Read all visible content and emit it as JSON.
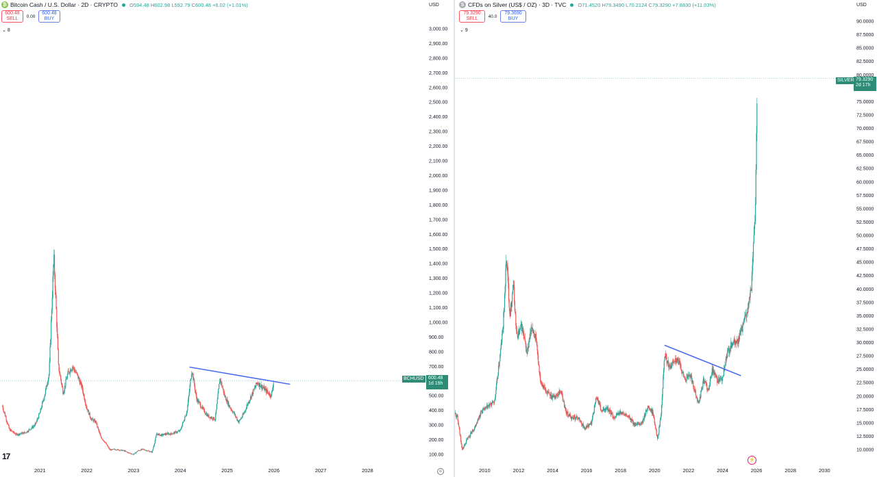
{
  "left": {
    "symbol_icon": "bitcoin-cash-icon",
    "title": "Bitcoin Cash / U.S. Dollar · 2D · CRYPTO",
    "ohlc": [
      {
        "k": "O",
        "v": "594.48"
      },
      {
        "k": "H",
        "v": "602.98"
      },
      {
        "k": "L",
        "v": "592.79"
      },
      {
        "k": "C",
        "v": "600.48"
      },
      {
        "k": "",
        "v": "+6.02 (+1.01%)"
      }
    ],
    "sell_price": "600.48",
    "sell_label": "SELL",
    "spread": "0.00",
    "buy_price": "600.48",
    "buy_label": "BUY",
    "indicators_count": "8",
    "currency": "USD",
    "symbol_tag": "BCHUSD",
    "last_price": "600.48",
    "countdown": "1d 19h"
  },
  "right": {
    "symbol_icon": "silver-icon",
    "title": "CFDs on Silver (US$ / OZ) · 3D · TVC",
    "ohlc": [
      {
        "k": "O",
        "v": "71.4520"
      },
      {
        "k": "H",
        "v": "79.3490"
      },
      {
        "k": "L",
        "v": "70.2124"
      },
      {
        "k": "C",
        "v": "79.3290"
      },
      {
        "k": "",
        "v": "+7.8830 (+11.03%)"
      }
    ],
    "sell_price": "79.3290",
    "sell_label": "SELL",
    "spread": "40.0",
    "buy_price": "79.3690",
    "buy_label": "BUY",
    "indicators_count": "9",
    "currency": "USD",
    "symbol_tag": "SILVER",
    "last_price": "79.3290",
    "countdown": "2d 17h"
  },
  "colors": {
    "up": "#26a69a",
    "down": "#ef5350",
    "trendline": "#4a6cf0",
    "price_tag": "#2e8b76",
    "price_line": "#7fc8b8"
  },
  "chart_data": [
    {
      "type": "candlestick",
      "title": "Bitcoin Cash / U.S. Dollar · 2D · CRYPTO",
      "ylabel": "USD",
      "ylim": [
        50,
        3050
      ],
      "y_ticks": [
        "100.00",
        "200.00",
        "300.00",
        "400.00",
        "500.00",
        "600.00",
        "700.00",
        "800.00",
        "900.00",
        "1,000.00",
        "1,100.00",
        "1,200.00",
        "1,300.00",
        "1,400.00",
        "1,500.00",
        "1,600.00",
        "1,700.00",
        "1,800.00",
        "1,900.00",
        "2,000.00",
        "2,100.00",
        "2,200.00",
        "2,300.00",
        "2,400.00",
        "2,500.00",
        "2,600.00",
        "2,700.00",
        "2,800.00",
        "2,900.00",
        "3,000.00"
      ],
      "x_ticks": [
        "2021",
        "2022",
        "2023",
        "2024",
        "2025",
        "2026",
        "2027",
        "2028"
      ],
      "series": [
        {
          "name": "BCHUSD",
          "points": [
            [
              2020.2,
              430
            ],
            [
              2020.35,
              270
            ],
            [
              2020.5,
              235
            ],
            [
              2020.7,
              250
            ],
            [
              2020.9,
              300
            ],
            [
              2021.0,
              380
            ],
            [
              2021.1,
              500
            ],
            [
              2021.2,
              650
            ],
            [
              2021.3,
              1450
            ],
            [
              2021.35,
              1100
            ],
            [
              2021.4,
              700
            ],
            [
              2021.5,
              520
            ],
            [
              2021.6,
              650
            ],
            [
              2021.7,
              700
            ],
            [
              2021.8,
              640
            ],
            [
              2021.9,
              560
            ],
            [
              2022.0,
              420
            ],
            [
              2022.1,
              340
            ],
            [
              2022.2,
              320
            ],
            [
              2022.3,
              220
            ],
            [
              2022.4,
              180
            ],
            [
              2022.5,
              130
            ],
            [
              2022.6,
              135
            ],
            [
              2022.7,
              130
            ],
            [
              2022.8,
              125
            ],
            [
              2022.9,
              110
            ],
            [
              2023.0,
              100
            ],
            [
              2023.1,
              125
            ],
            [
              2023.2,
              135
            ],
            [
              2023.3,
              125
            ],
            [
              2023.4,
              115
            ],
            [
              2023.5,
              240
            ],
            [
              2023.6,
              230
            ],
            [
              2023.7,
              240
            ],
            [
              2023.8,
              240
            ],
            [
              2023.9,
              250
            ],
            [
              2024.0,
              260
            ],
            [
              2024.15,
              400
            ],
            [
              2024.25,
              680
            ],
            [
              2024.35,
              480
            ],
            [
              2024.5,
              400
            ],
            [
              2024.6,
              360
            ],
            [
              2024.75,
              340
            ],
            [
              2024.85,
              620
            ],
            [
              2024.95,
              500
            ],
            [
              2025.05,
              430
            ],
            [
              2025.15,
              380
            ],
            [
              2025.25,
              320
            ],
            [
              2025.35,
              370
            ],
            [
              2025.45,
              450
            ],
            [
              2025.55,
              520
            ],
            [
              2025.65,
              590
            ],
            [
              2025.75,
              560
            ],
            [
              2025.85,
              530
            ],
            [
              2025.95,
              500
            ],
            [
              2026.0,
              600.48
            ]
          ]
        }
      ],
      "trendline": {
        "from": [
          2024.2,
          695
        ],
        "to": [
          2026.35,
          578
        ]
      },
      "last_price": 600.48
    },
    {
      "type": "candlestick",
      "title": "CFDs on Silver (US$ / OZ) · 3D · TVC",
      "ylabel": "USD",
      "ylim": [
        10,
        92
      ],
      "y_ticks": [
        "10.0000",
        "12.5000",
        "15.0000",
        "17.5000",
        "20.0000",
        "22.5000",
        "25.0000",
        "27.5000",
        "30.0000",
        "32.5000",
        "35.0000",
        "37.5000",
        "40.0000",
        "42.5000",
        "45.0000",
        "47.5000",
        "50.0000",
        "52.5000",
        "55.0000",
        "57.5000",
        "60.0000",
        "62.5000",
        "65.0000",
        "67.5000",
        "70.0000",
        "72.5000",
        "75.0000",
        "77.5000",
        "80.0000",
        "82.5000",
        "85.0000",
        "87.5000",
        "90.0000"
      ],
      "x_ticks": [
        "2010",
        "2012",
        "2014",
        "2016",
        "2018",
        "2020",
        "2022",
        "2024",
        "2026",
        "2028",
        "2030"
      ],
      "series": [
        {
          "name": "SILVER",
          "points": [
            [
              2008.1,
              18
            ],
            [
              2008.4,
              16
            ],
            [
              2008.7,
              10
            ],
            [
              2009.0,
              12
            ],
            [
              2009.4,
              14
            ],
            [
              2009.8,
              17
            ],
            [
              2010.2,
              18
            ],
            [
              2010.6,
              19
            ],
            [
              2010.9,
              27
            ],
            [
              2011.1,
              33
            ],
            [
              2011.3,
              46
            ],
            [
              2011.5,
              35
            ],
            [
              2011.7,
              41
            ],
            [
              2011.9,
              31
            ],
            [
              2012.2,
              33
            ],
            [
              2012.5,
              28
            ],
            [
              2012.8,
              33
            ],
            [
              2013.0,
              31
            ],
            [
              2013.3,
              23
            ],
            [
              2013.6,
              21
            ],
            [
              2013.9,
              20
            ],
            [
              2014.2,
              20
            ],
            [
              2014.5,
              21
            ],
            [
              2014.8,
              17
            ],
            [
              2015.1,
              16
            ],
            [
              2015.5,
              16
            ],
            [
              2015.9,
              14
            ],
            [
              2016.3,
              15
            ],
            [
              2016.6,
              20
            ],
            [
              2016.9,
              17
            ],
            [
              2017.2,
              18
            ],
            [
              2017.6,
              16
            ],
            [
              2018.0,
              17
            ],
            [
              2018.5,
              16
            ],
            [
              2018.9,
              14.5
            ],
            [
              2019.3,
              15
            ],
            [
              2019.6,
              18
            ],
            [
              2019.9,
              17
            ],
            [
              2020.2,
              12
            ],
            [
              2020.4,
              17
            ],
            [
              2020.6,
              28
            ],
            [
              2020.9,
              25
            ],
            [
              2021.2,
              27
            ],
            [
              2021.5,
              26
            ],
            [
              2021.8,
              23
            ],
            [
              2022.1,
              24
            ],
            [
              2022.4,
              21
            ],
            [
              2022.6,
              18.5
            ],
            [
              2022.9,
              23
            ],
            [
              2023.2,
              21
            ],
            [
              2023.4,
              25
            ],
            [
              2023.7,
              23
            ],
            [
              2024.0,
              23
            ],
            [
              2024.3,
              28
            ],
            [
              2024.6,
              30
            ],
            [
              2024.9,
              30
            ],
            [
              2025.2,
              33
            ],
            [
              2025.5,
              36
            ],
            [
              2025.7,
              40
            ],
            [
              2025.85,
              50
            ],
            [
              2025.95,
              55
            ],
            [
              2026.0,
              65
            ],
            [
              2026.05,
              79.329
            ]
          ]
        }
      ],
      "trendline": {
        "from": [
          2020.6,
          29.5
        ],
        "to": [
          2025.1,
          23.8
        ]
      },
      "last_price": 79.329
    }
  ]
}
